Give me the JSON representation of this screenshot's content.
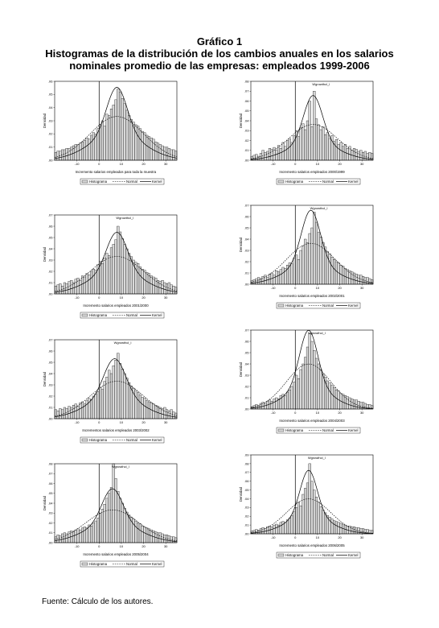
{
  "heading": {
    "caption": "Gráfico 1",
    "line1": "Histogramas de la distribución de los cambios anuales en los salarios",
    "line2": "nominales promedio de las empresas: empleados 1999-2006"
  },
  "footer": {
    "source": "Fuente: Cálculo de los autores."
  },
  "chart_data": [
    {
      "type": "bar",
      "xlabel": "Incremento salarios empleados para toda la muestra",
      "ylabel": "Densidad",
      "peak_annotation": "",
      "xlim": [
        -20,
        35
      ],
      "ylim": [
        0,
        0.06
      ],
      "xticks": [
        "-10",
        "0",
        "10",
        "20",
        "30"
      ],
      "yticks": [
        ".00",
        ".01",
        ".02",
        ".03",
        ".04",
        ".05",
        ".06"
      ],
      "bin_start": -20,
      "bin_width": 1,
      "values": [
        0.006,
        0.007,
        0.007,
        0.008,
        0.008,
        0.009,
        0.009,
        0.01,
        0.011,
        0.012,
        0.012,
        0.013,
        0.014,
        0.015,
        0.017,
        0.016,
        0.019,
        0.021,
        0.02,
        0.024,
        0.027,
        0.03,
        0.026,
        0.035,
        0.034,
        0.039,
        0.042,
        0.046,
        0.054,
        0.052,
        0.047,
        0.043,
        0.038,
        0.034,
        0.031,
        0.029,
        0.027,
        0.026,
        0.024,
        0.022,
        0.021,
        0.019,
        0.018,
        0.017,
        0.016,
        0.014,
        0.013,
        0.012,
        0.011,
        0.01,
        0.01,
        0.009,
        0.008,
        0.008,
        0.007
      ],
      "normal_density": {
        "mean": 8,
        "sd": 12
      },
      "kernel_density": {
        "mean": 8,
        "sd": 4.5,
        "tail": 0.6
      },
      "legend": [
        "Histograma",
        "Normal",
        "Kernel"
      ]
    },
    {
      "type": "bar",
      "xlabel": "Incremento salarios empleados 2000/1999",
      "ylabel": "Densidad",
      "peak_annotation": "Wgrowthcl_l",
      "xlim": [
        -20,
        35
      ],
      "ylim": [
        0,
        0.08
      ],
      "xticks": [
        "-10",
        "0",
        "10",
        "20",
        "30"
      ],
      "yticks": [
        ".00",
        ".01",
        ".02",
        ".03",
        ".04",
        ".05",
        ".06",
        ".07",
        ".08"
      ],
      "bin_start": -20,
      "bin_width": 1,
      "values": [
        0.004,
        0.005,
        0.006,
        0.004,
        0.007,
        0.01,
        0.008,
        0.009,
        0.012,
        0.011,
        0.013,
        0.01,
        0.015,
        0.012,
        0.018,
        0.014,
        0.02,
        0.022,
        0.018,
        0.025,
        0.03,
        0.024,
        0.033,
        0.037,
        0.031,
        0.04,
        0.06,
        0.034,
        0.07,
        0.042,
        0.036,
        0.031,
        0.034,
        0.026,
        0.028,
        0.022,
        0.025,
        0.019,
        0.021,
        0.016,
        0.018,
        0.014,
        0.016,
        0.012,
        0.014,
        0.01,
        0.012,
        0.011,
        0.009,
        0.01,
        0.008,
        0.009,
        0.007,
        0.008,
        0.007
      ],
      "normal_density": {
        "mean": 8,
        "sd": 11
      },
      "kernel_density": {
        "mean": 8,
        "sd": 4.2,
        "tail": 0.5
      },
      "legend": [
        "Histograma",
        "Normal",
        "Kernel"
      ]
    },
    {
      "type": "bar",
      "xlabel": "Incremento salarios empleados 2001/2000",
      "ylabel": "Densidad",
      "peak_annotation": "Wgrowthcl_l",
      "xlim": [
        -20,
        35
      ],
      "ylim": [
        0,
        0.07
      ],
      "xticks": [
        "-10",
        "0",
        "10",
        "20",
        "30"
      ],
      "yticks": [
        ".00",
        ".01",
        ".02",
        ".03",
        ".04",
        ".05",
        ".06",
        ".07"
      ],
      "bin_start": -20,
      "bin_width": 1,
      "values": [
        0.007,
        0.008,
        0.009,
        0.007,
        0.01,
        0.009,
        0.011,
        0.012,
        0.01,
        0.013,
        0.014,
        0.012,
        0.016,
        0.015,
        0.018,
        0.017,
        0.02,
        0.022,
        0.021,
        0.026,
        0.029,
        0.027,
        0.032,
        0.036,
        0.034,
        0.041,
        0.044,
        0.048,
        0.06,
        0.055,
        0.049,
        0.044,
        0.04,
        0.036,
        0.033,
        0.03,
        0.028,
        0.027,
        0.024,
        0.022,
        0.021,
        0.019,
        0.018,
        0.016,
        0.015,
        0.014,
        0.012,
        0.011,
        0.012,
        0.01,
        0.009,
        0.01,
        0.008,
        0.007,
        0.006
      ],
      "normal_density": {
        "mean": 8,
        "sd": 12
      },
      "kernel_density": {
        "mean": 8,
        "sd": 4.6,
        "tail": 0.6
      },
      "legend": [
        "Histograma",
        "Normal",
        "Kernel"
      ]
    },
    {
      "type": "bar",
      "xlabel": "Incremento salarios empleados 2002/2001",
      "ylabel": "Densidad",
      "peak_annotation": "Wgrowthcl_l",
      "xlim": [
        -20,
        35
      ],
      "ylim": [
        0,
        0.07
      ],
      "xticks": [
        "-10",
        "0",
        "10",
        "20",
        "30"
      ],
      "yticks": [
        ".00",
        ".01",
        ".02",
        ".03",
        ".04",
        ".05",
        ".06",
        ".07"
      ],
      "bin_start": -20,
      "bin_width": 1,
      "values": [
        0.003,
        0.004,
        0.005,
        0.006,
        0.005,
        0.007,
        0.008,
        0.006,
        0.009,
        0.01,
        0.008,
        0.012,
        0.011,
        0.013,
        0.015,
        0.014,
        0.017,
        0.019,
        0.018,
        0.023,
        0.026,
        0.022,
        0.03,
        0.034,
        0.04,
        0.037,
        0.045,
        0.05,
        0.064,
        0.055,
        0.046,
        0.042,
        0.037,
        0.033,
        0.029,
        0.027,
        0.024,
        0.022,
        0.02,
        0.019,
        0.017,
        0.016,
        0.014,
        0.013,
        0.012,
        0.011,
        0.01,
        0.009,
        0.008,
        0.008,
        0.007,
        0.006,
        0.006,
        0.005,
        0.004
      ],
      "normal_density": {
        "mean": 7,
        "sd": 11
      },
      "kernel_density": {
        "mean": 7,
        "sd": 4.2,
        "tail": 0.5
      },
      "legend": [
        "Histograma",
        "Normal",
        "Kernel"
      ]
    },
    {
      "type": "bar",
      "xlabel": "Incrementos salarios empleados 2003/2002",
      "ylabel": "Densidad",
      "peak_annotation": "Wgrowthcl_l",
      "xlim": [
        -20,
        35
      ],
      "ylim": [
        0,
        0.07
      ],
      "xticks": [
        "-10",
        "0",
        "10",
        "20",
        "30"
      ],
      "yticks": [
        ".00",
        ".01",
        ".02",
        ".03",
        ".04",
        ".05",
        ".06",
        ".07"
      ],
      "bin_start": -20,
      "bin_width": 1,
      "values": [
        0.008,
        0.007,
        0.009,
        0.008,
        0.01,
        0.009,
        0.011,
        0.01,
        0.012,
        0.013,
        0.011,
        0.014,
        0.015,
        0.013,
        0.016,
        0.018,
        0.017,
        0.02,
        0.022,
        0.024,
        0.028,
        0.026,
        0.033,
        0.037,
        0.043,
        0.04,
        0.047,
        0.052,
        0.058,
        0.049,
        0.044,
        0.04,
        0.036,
        0.032,
        0.029,
        0.027,
        0.025,
        0.023,
        0.021,
        0.019,
        0.018,
        0.016,
        0.015,
        0.014,
        0.013,
        0.012,
        0.011,
        0.01,
        0.009,
        0.01,
        0.008,
        0.007,
        0.008,
        0.006,
        0.005
      ],
      "normal_density": {
        "mean": 8,
        "sd": 12
      },
      "kernel_density": {
        "mean": 7,
        "sd": 4.8,
        "tail": 0.6
      },
      "legend": [
        "Histograma",
        "Normal",
        "Kernel"
      ]
    },
    {
      "type": "bar",
      "xlabel": "Incremento salarios empleados 2004/2003",
      "ylabel": "Densidad",
      "peak_annotation": "Wgrowthcl_l",
      "xlim": [
        -20,
        35
      ],
      "ylim": [
        0,
        0.07
      ],
      "xticks": [
        "-10",
        "0",
        "10",
        "20",
        "30"
      ],
      "yticks": [
        ".00",
        ".01",
        ".02",
        ".03",
        ".04",
        ".05",
        ".06",
        ".07"
      ],
      "bin_start": -20,
      "bin_width": 1,
      "values": [
        0.002,
        0.003,
        0.004,
        0.003,
        0.005,
        0.006,
        0.005,
        0.007,
        0.008,
        0.007,
        0.009,
        0.01,
        0.009,
        0.012,
        0.013,
        0.012,
        0.015,
        0.017,
        0.02,
        0.024,
        0.03,
        0.027,
        0.035,
        0.04,
        0.046,
        0.055,
        0.067,
        0.06,
        0.052,
        0.045,
        0.04,
        0.035,
        0.031,
        0.028,
        0.025,
        0.023,
        0.021,
        0.019,
        0.017,
        0.016,
        0.014,
        0.013,
        0.012,
        0.011,
        0.01,
        0.009,
        0.008,
        0.008,
        0.007,
        0.006,
        0.006,
        0.005,
        0.004,
        0.004,
        0.003
      ],
      "normal_density": {
        "mean": 6,
        "sd": 10
      },
      "kernel_density": {
        "mean": 6,
        "sd": 4.0,
        "tail": 0.5
      },
      "legend": [
        "Histograma",
        "Normal",
        "Kernel"
      ]
    },
    {
      "type": "bar",
      "xlabel": "Incremento salarios empleados 2005/2004",
      "ylabel": "Densidad",
      "peak_annotation": "Wgrowthcl_l",
      "xlim": [
        -20,
        35
      ],
      "ylim": [
        0,
        0.08
      ],
      "xticks": [
        "-10",
        "0",
        "10",
        "20",
        "30"
      ],
      "yticks": [
        ".00",
        ".01",
        ".02",
        ".03",
        ".04",
        ".05",
        ".06",
        ".07",
        ".08"
      ],
      "bin_start": -20,
      "bin_width": 1,
      "values": [
        0.006,
        0.008,
        0.007,
        0.009,
        0.01,
        0.009,
        0.011,
        0.012,
        0.011,
        0.013,
        0.014,
        0.013,
        0.015,
        0.016,
        0.015,
        0.018,
        0.017,
        0.02,
        0.022,
        0.025,
        0.03,
        0.034,
        0.039,
        0.045,
        0.05,
        0.056,
        0.08,
        0.065,
        0.052,
        0.045,
        0.04,
        0.035,
        0.031,
        0.028,
        0.026,
        0.024,
        0.022,
        0.02,
        0.019,
        0.017,
        0.016,
        0.015,
        0.014,
        0.013,
        0.012,
        0.011,
        0.01,
        0.01,
        0.009,
        0.008,
        0.008,
        0.007,
        0.006,
        0.006,
        0.005
      ],
      "normal_density": {
        "mean": 6,
        "sd": 12
      },
      "kernel_density": {
        "mean": 6,
        "sd": 4.6,
        "tail": 0.6
      },
      "legend": [
        "Histograma",
        "Normal",
        "Kernel"
      ]
    },
    {
      "type": "bar",
      "xlabel": "Incremento salarios empleados 2006/2005",
      "ylabel": "Densidad",
      "peak_annotation": "Wgrowthcl_l",
      "xlim": [
        -20,
        35
      ],
      "ylim": [
        0,
        0.09
      ],
      "xticks": [
        "-10",
        "0",
        "10",
        "20",
        "30"
      ],
      "yticks": [
        ".00",
        ".01",
        ".02",
        ".03",
        ".04",
        ".05",
        ".06",
        ".07",
        ".08",
        ".09"
      ],
      "bin_start": -20,
      "bin_width": 1,
      "values": [
        0.003,
        0.004,
        0.005,
        0.004,
        0.006,
        0.007,
        0.006,
        0.008,
        0.009,
        0.008,
        0.01,
        0.011,
        0.01,
        0.013,
        0.014,
        0.013,
        0.016,
        0.018,
        0.021,
        0.025,
        0.03,
        0.036,
        0.032,
        0.045,
        0.052,
        0.058,
        0.08,
        0.06,
        0.05,
        0.042,
        0.036,
        0.031,
        0.027,
        0.024,
        0.021,
        0.019,
        0.017,
        0.015,
        0.014,
        0.013,
        0.012,
        0.011,
        0.01,
        0.009,
        0.009,
        0.008,
        0.008,
        0.007,
        0.007,
        0.006,
        0.006,
        0.005,
        0.005,
        0.004,
        0.004
      ],
      "normal_density": {
        "mean": 6,
        "sd": 10
      },
      "kernel_density": {
        "mean": 6,
        "sd": 3.8,
        "tail": 0.5
      },
      "legend": [
        "Histograma",
        "Normal",
        "Kernel"
      ]
    }
  ]
}
